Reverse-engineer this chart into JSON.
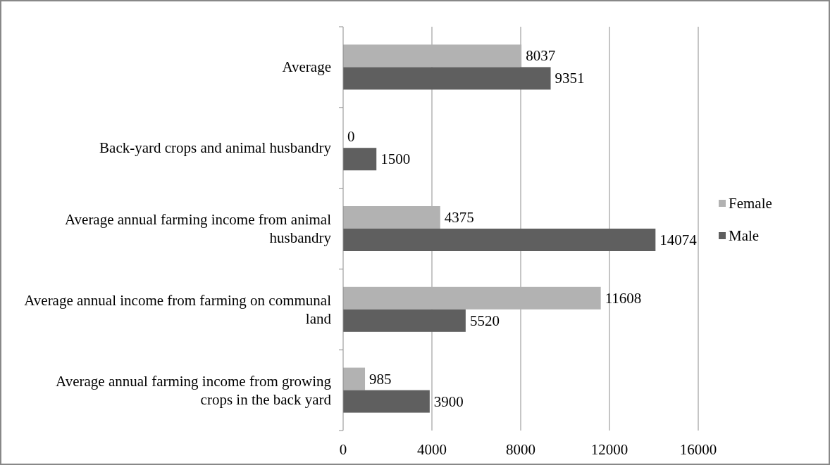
{
  "chart_data": {
    "type": "bar",
    "orientation": "horizontal",
    "categories": [
      "Average",
      "Back-yard crops and animal husbandry",
      "Average annual farming income from animal husbandry",
      "Average annual income from farming on communal land",
      "Average annual farming income from growing crops in the back yard"
    ],
    "series": [
      {
        "name": "Female",
        "color": "#b2b2b2",
        "values": [
          8037,
          0,
          4375,
          11608,
          985
        ]
      },
      {
        "name": "Male",
        "color": "#5f5f5f",
        "values": [
          9351,
          1500,
          14074,
          5520,
          3900
        ]
      }
    ],
    "xlim": [
      0,
      16000
    ],
    "xticks": [
      0,
      4000,
      8000,
      12000,
      16000
    ],
    "grid": "x",
    "legend": "right",
    "data_labels": true
  }
}
